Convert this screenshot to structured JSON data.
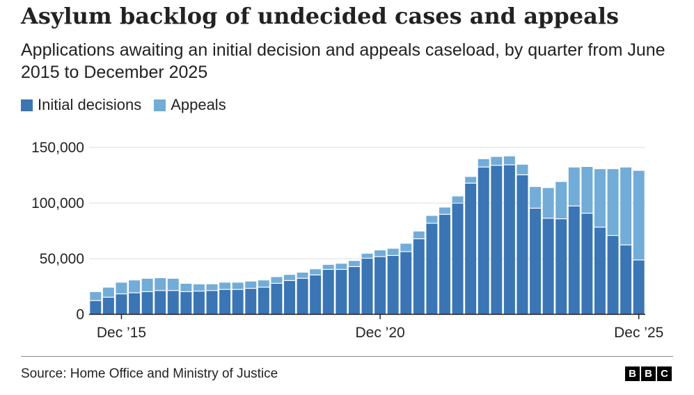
{
  "header": {
    "title": "Asylum backlog of undecided cases and appeals",
    "subtitle": "Applications awaiting an initial decision and appeals caseload, by quarter from June 2015 to December 2025"
  },
  "legend": {
    "initial_label": "Initial decisions",
    "appeals_label": "Appeals"
  },
  "colors": {
    "initial": "#3a75b6",
    "appeals": "#72acd9",
    "grid": "#dddddd",
    "axis": "#222222"
  },
  "footer": {
    "source": "Source: Home Office and Ministry of Justice",
    "logo_letters": [
      "B",
      "B",
      "C"
    ]
  },
  "chart_data": {
    "type": "bar",
    "stacked": true,
    "title": "Asylum backlog of undecided cases and appeals",
    "xlabel": "",
    "ylabel": "",
    "ylim": [
      0,
      150000
    ],
    "yticks": [
      0,
      50000,
      100000,
      150000
    ],
    "ytick_labels": [
      "0",
      "50,000",
      "100,000",
      "150,000"
    ],
    "xtick_labels": [
      {
        "index": 2,
        "label": "Dec ’15"
      },
      {
        "index": 22,
        "label": "Dec ’20"
      },
      {
        "index": 42,
        "label": "Dec ’25"
      }
    ],
    "categories": [
      "Jun 2015",
      "Sep 2015",
      "Dec 2015",
      "Mar 2016",
      "Jun 2016",
      "Sep 2016",
      "Dec 2016",
      "Mar 2017",
      "Jun 2017",
      "Sep 2017",
      "Dec 2017",
      "Mar 2018",
      "Jun 2018",
      "Sep 2018",
      "Dec 2018",
      "Mar 2019",
      "Jun 2019",
      "Sep 2019",
      "Dec 2019",
      "Mar 2020",
      "Jun 2020",
      "Sep 2020",
      "Dec 2020",
      "Mar 2021",
      "Jun 2021",
      "Sep 2021",
      "Dec 2021",
      "Mar 2022",
      "Jun 2022",
      "Sep 2022",
      "Dec 2022",
      "Mar 2023",
      "Jun 2023",
      "Sep 2023",
      "Dec 2023",
      "Mar 2024",
      "Jun 2024",
      "Sep 2024",
      "Dec 2024",
      "Mar 2025",
      "Jun 2025",
      "Sep 2025",
      "Dec 2025"
    ],
    "series": [
      {
        "name": "Initial decisions",
        "values": [
          12000,
          15000,
          18000,
          19000,
          20000,
          21000,
          21000,
          20000,
          20500,
          21000,
          22000,
          22000,
          23000,
          24000,
          27500,
          30000,
          32000,
          35000,
          40000,
          40000,
          42500,
          50000,
          51500,
          52500,
          56000,
          67500,
          81500,
          89500,
          99500,
          117500,
          132000,
          133500,
          134000,
          125000,
          95000,
          86000,
          85500,
          97000,
          90500,
          78000,
          70500,
          62000,
          48500
        ]
      },
      {
        "name": "Appeals",
        "values": [
          8000,
          9000,
          10500,
          11500,
          12000,
          11500,
          11000,
          7500,
          6500,
          6000,
          6500,
          6500,
          6500,
          6500,
          6000,
          5500,
          5500,
          5500,
          4500,
          5500,
          5500,
          4500,
          6000,
          6500,
          7500,
          7000,
          7000,
          6500,
          6500,
          6000,
          7500,
          8000,
          8000,
          9500,
          19500,
          27500,
          33500,
          35000,
          42000,
          52500,
          60000,
          70000,
          80500
        ]
      }
    ]
  }
}
